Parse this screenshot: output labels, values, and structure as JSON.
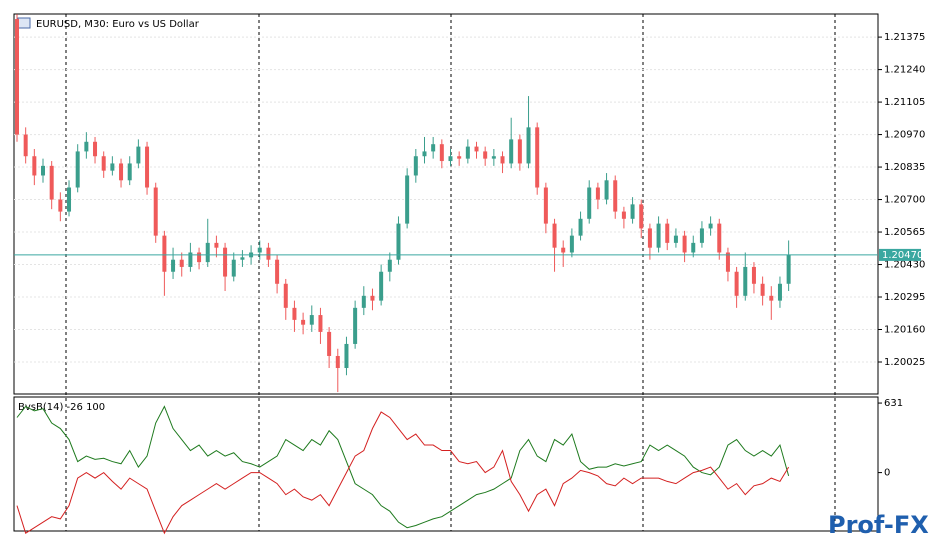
{
  "chart_data": [
    {
      "type": "candlestick",
      "title": "EURUSD, M30:  Euro vs US Dollar",
      "up_color": "#3a9e8c",
      "down_color": "#ef5a5a",
      "series": {
        "open": [
          1.2145,
          1.2097,
          1.2088,
          1.208,
          1.2084,
          1.207,
          1.2065,
          1.2075,
          1.209,
          1.2094,
          1.2088,
          1.2082,
          1.2085,
          1.2078,
          1.2085,
          1.2092,
          1.2075,
          1.2055,
          1.204,
          1.2045,
          1.2042,
          1.2048,
          1.2044,
          1.2052,
          1.205,
          1.2038,
          1.2045,
          1.2046,
          1.2048,
          1.205,
          1.2045,
          1.2035,
          1.2025,
          1.202,
          1.2018,
          1.2022,
          1.2015,
          1.2005,
          1.2,
          1.201,
          1.2025,
          1.203,
          1.2028,
          1.204,
          1.2045,
          1.206,
          1.208,
          1.2088,
          1.209,
          1.2093,
          1.2086,
          1.2088,
          1.2087,
          1.2092,
          1.209,
          1.2087,
          1.2088,
          1.2085,
          1.2095,
          1.2085,
          1.21,
          1.2075,
          1.206,
          1.205,
          1.2048,
          1.2055,
          1.2062,
          1.2075,
          1.207,
          1.2078,
          1.2065,
          1.2062,
          1.2068,
          1.2058,
          1.205,
          1.206,
          1.2052,
          1.2055,
          1.2048,
          1.2052,
          1.2058,
          1.206,
          1.2048,
          1.204,
          1.203,
          1.2042,
          1.2035,
          1.203,
          1.2028,
          1.2035
        ],
        "high": [
          1.2147,
          1.21,
          1.2091,
          1.2087,
          1.2086,
          1.2073,
          1.2078,
          1.2093,
          1.2098,
          1.2096,
          1.209,
          1.2088,
          1.2087,
          1.2088,
          1.2095,
          1.2094,
          1.2077,
          1.2057,
          1.205,
          1.2048,
          1.2052,
          1.205,
          1.2062,
          1.2055,
          1.2052,
          1.2048,
          1.2049,
          1.2051,
          1.2053,
          1.2052,
          1.2047,
          1.2037,
          1.2028,
          1.2023,
          1.2026,
          1.2025,
          1.2017,
          1.2008,
          1.2013,
          1.2028,
          1.2034,
          1.2033,
          1.2043,
          1.2048,
          1.2063,
          1.2083,
          1.2091,
          1.2096,
          1.2096,
          1.2095,
          1.2091,
          1.209,
          1.2095,
          1.2094,
          1.2092,
          1.2091,
          1.209,
          1.2104,
          1.2097,
          1.2113,
          1.2102,
          1.2077,
          1.2062,
          1.2053,
          1.2058,
          1.2065,
          1.2078,
          1.2077,
          1.2081,
          1.208,
          1.2067,
          1.2071,
          1.207,
          1.206,
          1.2063,
          1.2062,
          1.2058,
          1.2057,
          1.2055,
          1.2061,
          1.2063,
          1.2062,
          1.205,
          1.2042,
          1.2048,
          1.2044,
          1.2038,
          1.2034,
          1.2038,
          1.2053
        ],
        "low": [
          1.2094,
          1.2085,
          1.2076,
          1.2077,
          1.2066,
          1.2061,
          1.2063,
          1.2073,
          1.2087,
          1.2085,
          1.2079,
          1.208,
          1.2075,
          1.2076,
          1.2083,
          1.2072,
          1.2052,
          1.203,
          1.2037,
          1.2038,
          1.204,
          1.2041,
          1.2042,
          1.2046,
          1.2032,
          1.2036,
          1.2042,
          1.2043,
          1.2045,
          1.2042,
          1.2031,
          1.202,
          1.2015,
          1.2014,
          1.2015,
          1.201,
          1.2,
          1.199,
          1.1997,
          1.2008,
          1.2022,
          1.2024,
          1.2026,
          1.2036,
          1.2043,
          1.2058,
          1.2077,
          1.2085,
          1.2087,
          1.2083,
          1.2084,
          1.2084,
          1.2085,
          1.2087,
          1.2084,
          1.2084,
          1.2081,
          1.2083,
          1.2082,
          1.2083,
          1.2072,
          1.2056,
          1.204,
          1.2042,
          1.2046,
          1.2053,
          1.206,
          1.2066,
          1.2068,
          1.2062,
          1.2058,
          1.206,
          1.2054,
          1.2045,
          1.2048,
          1.2049,
          1.205,
          1.2044,
          1.2046,
          1.205,
          1.2055,
          1.2045,
          1.2036,
          1.2025,
          1.2028,
          1.2031,
          1.2026,
          1.202,
          1.2025,
          1.2032
        ],
        "close": [
          1.2097,
          1.2088,
          1.208,
          1.2084,
          1.207,
          1.2065,
          1.2075,
          1.209,
          1.2094,
          1.2088,
          1.2082,
          1.2085,
          1.2078,
          1.2085,
          1.2092,
          1.2075,
          1.2055,
          1.204,
          1.2045,
          1.2042,
          1.2048,
          1.2044,
          1.2052,
          1.205,
          1.2038,
          1.2045,
          1.2046,
          1.2048,
          1.205,
          1.2045,
          1.2035,
          1.2025,
          1.202,
          1.2018,
          1.2022,
          1.2015,
          1.2005,
          1.2,
          1.201,
          1.2025,
          1.203,
          1.2028,
          1.204,
          1.2045,
          1.206,
          1.208,
          1.2088,
          1.209,
          1.2093,
          1.2086,
          1.2088,
          1.2087,
          1.2092,
          1.209,
          1.2087,
          1.2088,
          1.2085,
          1.2095,
          1.2085,
          1.21,
          1.2075,
          1.206,
          1.205,
          1.2048,
          1.2055,
          1.2062,
          1.2075,
          1.207,
          1.2078,
          1.2065,
          1.2062,
          1.2068,
          1.2058,
          1.205,
          1.206,
          1.2052,
          1.2055,
          1.2048,
          1.2052,
          1.2058,
          1.206,
          1.2048,
          1.204,
          1.203,
          1.2042,
          1.2035,
          1.203,
          1.2028,
          1.2035,
          1.2047
        ]
      },
      "ylim": [
        1.19892,
        1.21471
      ],
      "yticks": [
        1.21375,
        {
          "value": 1.2124,
          "label": "1.21240"
        },
        1.21105,
        {
          "value": 1.2097,
          "label": "1.20970"
        },
        1.20835,
        {
          "value": 1.207,
          "label": "1.20700"
        },
        1.20565,
        {
          "value": 1.2043,
          "label": "1.20430"
        },
        1.20295,
        {
          "value": 1.2016,
          "label": "1.20160"
        },
        1.20025
      ],
      "price_line": {
        "value": 1.2047,
        "label": "1.20470",
        "color": "#3aa7a0"
      },
      "grid": true
    },
    {
      "type": "line",
      "title": "BvsB(14) -26 100",
      "series": [
        {
          "color": "#1e7a1e",
          "values": [
            500,
            600,
            560,
            580,
            450,
            400,
            300,
            100,
            150,
            120,
            130,
            100,
            80,
            200,
            50,
            150,
            450,
            600,
            400,
            300,
            200,
            250,
            150,
            200,
            150,
            180,
            100,
            80,
            50,
            100,
            150,
            300,
            250,
            200,
            300,
            250,
            380,
            300,
            100,
            -100,
            -150,
            -200,
            -300,
            -350,
            -450,
            -500,
            -480,
            -450,
            -420,
            -400,
            -350,
            -300,
            -250,
            -200,
            -180,
            -150,
            -100,
            -50,
            200,
            300,
            150,
            100,
            300,
            250,
            350,
            100,
            30,
            50,
            50,
            80,
            60,
            80,
            100,
            250,
            200,
            250,
            200,
            150,
            50,
            0,
            -20,
            50,
            250,
            300,
            200,
            150,
            200,
            150,
            250,
            -30
          ]
        },
        {
          "color": "#d42020",
          "values": [
            -300,
            -550,
            -500,
            -450,
            -400,
            -420,
            -300,
            -50,
            0,
            -50,
            0,
            -80,
            -150,
            -50,
            -100,
            -150,
            -350,
            -550,
            -400,
            -300,
            -250,
            -200,
            -150,
            -100,
            -150,
            -100,
            -50,
            0,
            0,
            -50,
            -100,
            -200,
            -150,
            -220,
            -250,
            -200,
            -300,
            -150,
            0,
            150,
            200,
            400,
            550,
            500,
            400,
            300,
            350,
            250,
            250,
            200,
            200,
            100,
            80,
            100,
            0,
            50,
            200,
            -80,
            -200,
            -350,
            -200,
            -150,
            -300,
            -100,
            -50,
            20,
            0,
            -30,
            -100,
            -120,
            -50,
            -100,
            -50,
            -50,
            -50,
            -80,
            -100,
            -50,
            0,
            20,
            50,
            -50,
            -150,
            -100,
            -200,
            -120,
            -100,
            -50,
            -80,
            50
          ]
        }
      ],
      "ylim": [
        -530,
        686
      ],
      "yticks": [
        631,
        0
      ]
    }
  ],
  "watermark": "Prof-FX"
}
